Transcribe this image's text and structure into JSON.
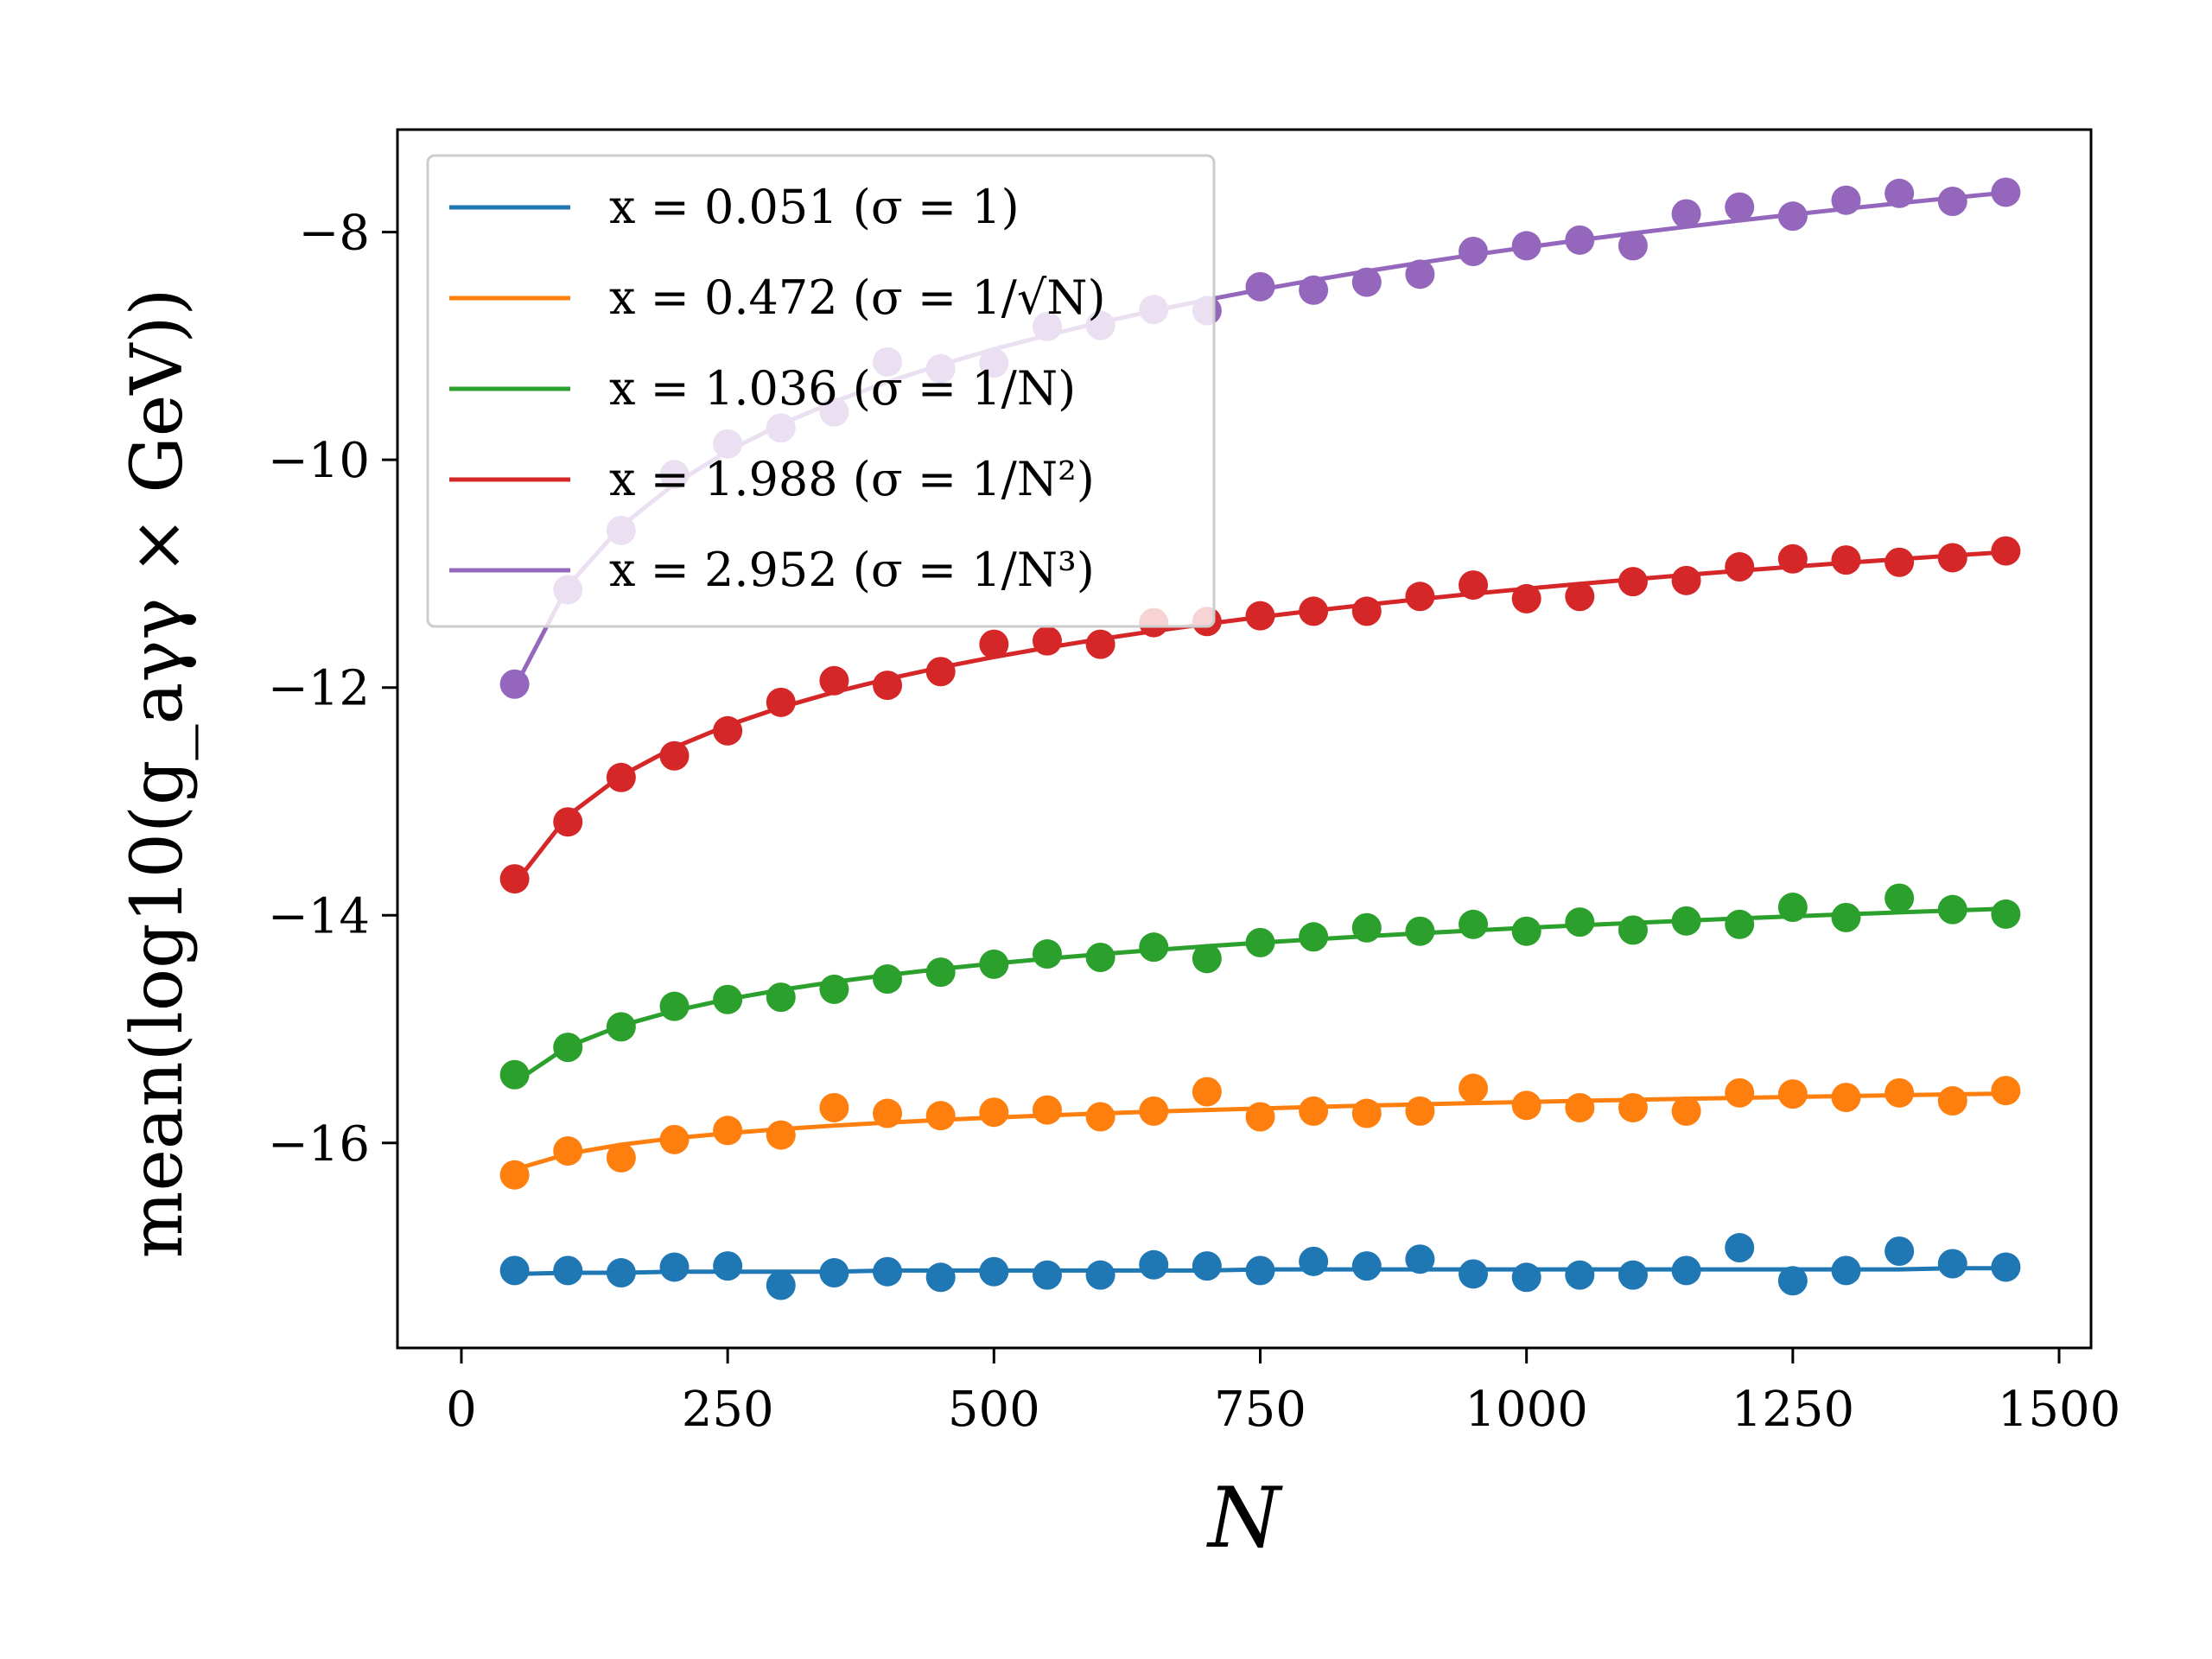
{
  "chart_data": {
    "type": "scatter",
    "title": "",
    "xlabel": "N",
    "ylabel": "mean(log10(g_aγγ × GeV))",
    "xlim": [
      -60,
      1530
    ],
    "ylim": [
      -17.8,
      -7.1
    ],
    "xticks": [
      0,
      250,
      500,
      750,
      1000,
      1250,
      1500
    ],
    "xtick_labels": [
      "0",
      "250",
      "500",
      "750",
      "1000",
      "1250",
      "1500"
    ],
    "yticks": [
      -16,
      -14,
      -12,
      -10,
      -8
    ],
    "ytick_labels": [
      "−16",
      "−14",
      "−12",
      "−10",
      "−8"
    ],
    "legend_position": "top-left",
    "x": [
      50,
      100,
      150,
      200,
      250,
      300,
      350,
      400,
      450,
      500,
      550,
      600,
      650,
      700,
      750,
      800,
      850,
      900,
      950,
      1000,
      1050,
      1100,
      1150,
      1200,
      1250,
      1300,
      1350,
      1400,
      1450
    ],
    "series": [
      {
        "name": "blue",
        "label": "x = 0.051 (σ = 1)",
        "color": "#1f77b4",
        "values": [
          -17.12,
          -17.12,
          -17.14,
          -17.09,
          -17.08,
          -17.25,
          -17.14,
          -17.13,
          -17.18,
          -17.13,
          -17.16,
          -17.16,
          -17.07,
          -17.08,
          -17.12,
          -17.04,
          -17.08,
          -17.02,
          -17.15,
          -17.18,
          -17.16,
          -17.16,
          -17.12,
          -16.92,
          -17.21,
          -17.12,
          -16.95,
          -17.06,
          -17.09
        ],
        "fit": [
          -17.15,
          -17.14,
          -17.14,
          -17.13,
          -17.13,
          -17.13,
          -17.13,
          -17.12,
          -17.12,
          -17.12,
          -17.12,
          -17.12,
          -17.12,
          -17.12,
          -17.11,
          -17.11,
          -17.11,
          -17.11,
          -17.11,
          -17.11,
          -17.11,
          -17.11,
          -17.11,
          -17.11,
          -17.11,
          -17.11,
          -17.11,
          -17.1,
          -17.1
        ]
      },
      {
        "name": "orange",
        "label": "x = 0.472 (σ = 1/√N)",
        "color": "#ff7f0e",
        "values": [
          -16.28,
          -16.07,
          -16.13,
          -15.97,
          -15.89,
          -15.93,
          -15.69,
          -15.74,
          -15.76,
          -15.73,
          -15.71,
          -15.77,
          -15.72,
          -15.55,
          -15.77,
          -15.72,
          -15.74,
          -15.72,
          -15.52,
          -15.67,
          -15.69,
          -15.69,
          -15.72,
          -15.56,
          -15.57,
          -15.6,
          -15.56,
          -15.63,
          -15.54
        ]
      },
      {
        "name": "green",
        "label": "x = 1.036 (σ = 1/N)",
        "color": "#2ca02c",
        "values": [
          -15.4,
          -15.16,
          -14.98,
          -14.8,
          -14.74,
          -14.72,
          -14.65,
          -14.56,
          -14.5,
          -14.43,
          -14.34,
          -14.37,
          -14.28,
          -14.38,
          -14.24,
          -14.19,
          -14.11,
          -14.14,
          -14.08,
          -14.14,
          -14.06,
          -14.13,
          -14.05,
          -14.08,
          -13.93,
          -14.02,
          -13.85,
          -13.95,
          -13.99
        ]
      },
      {
        "name": "red",
        "label": "x = 1.988 (σ = 1/N²)",
        "color": "#d62728",
        "values": [
          -13.68,
          -13.18,
          -12.79,
          -12.6,
          -12.38,
          -12.13,
          -11.94,
          -11.98,
          -11.86,
          -11.62,
          -11.59,
          -11.62,
          -11.43,
          -11.42,
          -11.37,
          -11.33,
          -11.33,
          -11.2,
          -11.1,
          -11.22,
          -11.2,
          -11.07,
          -11.06,
          -10.94,
          -10.87,
          -10.88,
          -10.9,
          -10.86,
          -10.8
        ]
      },
      {
        "name": "purple",
        "label": "x = 2.952 (σ = 1/N³)",
        "color": "#9467bd",
        "values": [
          -11.97,
          -11.14,
          -10.62,
          -10.13,
          -9.86,
          -9.72,
          -9.58,
          -9.14,
          -9.2,
          -9.15,
          -8.83,
          -8.82,
          -8.68,
          -8.69,
          -8.48,
          -8.51,
          -8.44,
          -8.37,
          -8.17,
          -8.12,
          -8.07,
          -8.12,
          -7.84,
          -7.78,
          -7.86,
          -7.72,
          -7.66,
          -7.73,
          -7.65
        ]
      }
    ]
  }
}
